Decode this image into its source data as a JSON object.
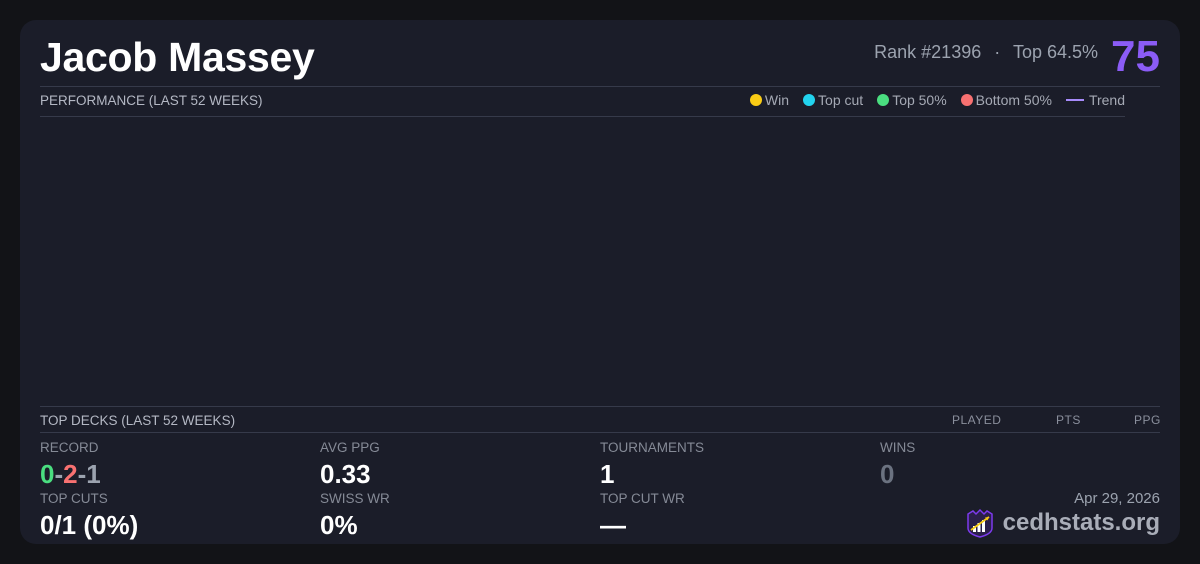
{
  "header": {
    "player_name": "Jacob Massey",
    "rank_text": "Rank #21396",
    "separator": "·",
    "top_percent": "Top 64.5%",
    "score": "75"
  },
  "performance": {
    "title": "PERFORMANCE (LAST 52 WEEKS)",
    "legend": [
      {
        "label": "Win",
        "color": "#facc15"
      },
      {
        "label": "Top cut",
        "color": "#22d3ee"
      },
      {
        "label": "Top 50%",
        "color": "#4ade80"
      },
      {
        "label": "Bottom 50%",
        "color": "#f87171"
      },
      {
        "label": "Trend",
        "color": "#a78bfa"
      }
    ]
  },
  "top_decks": {
    "title": "TOP DECKS (LAST 52 WEEKS)",
    "columns": [
      "PLAYED",
      "PTS",
      "PPG"
    ]
  },
  "stats": {
    "record": {
      "label": "RECORD",
      "wins": "0",
      "losses": "2",
      "draws": "1",
      "sep": "-"
    },
    "avg_ppg": {
      "label": "AVG PPG",
      "value": "0.33"
    },
    "tournaments": {
      "label": "TOURNAMENTS",
      "value": "1"
    },
    "wins": {
      "label": "WINS",
      "value": "0"
    },
    "top_cuts": {
      "label": "TOP CUTS",
      "value": "0/1 (0%)"
    },
    "swiss_wr": {
      "label": "SWISS WR",
      "value": "0%"
    },
    "top_cut_wr": {
      "label": "TOP CUT WR",
      "value": "—"
    }
  },
  "footer": {
    "date": "Apr 29, 2026",
    "brand": "cedhstats.org"
  },
  "colors": {
    "accent": "#8b5cf6",
    "win": "#4ade80",
    "loss": "#f87171",
    "draw": "#9ca3af"
  }
}
